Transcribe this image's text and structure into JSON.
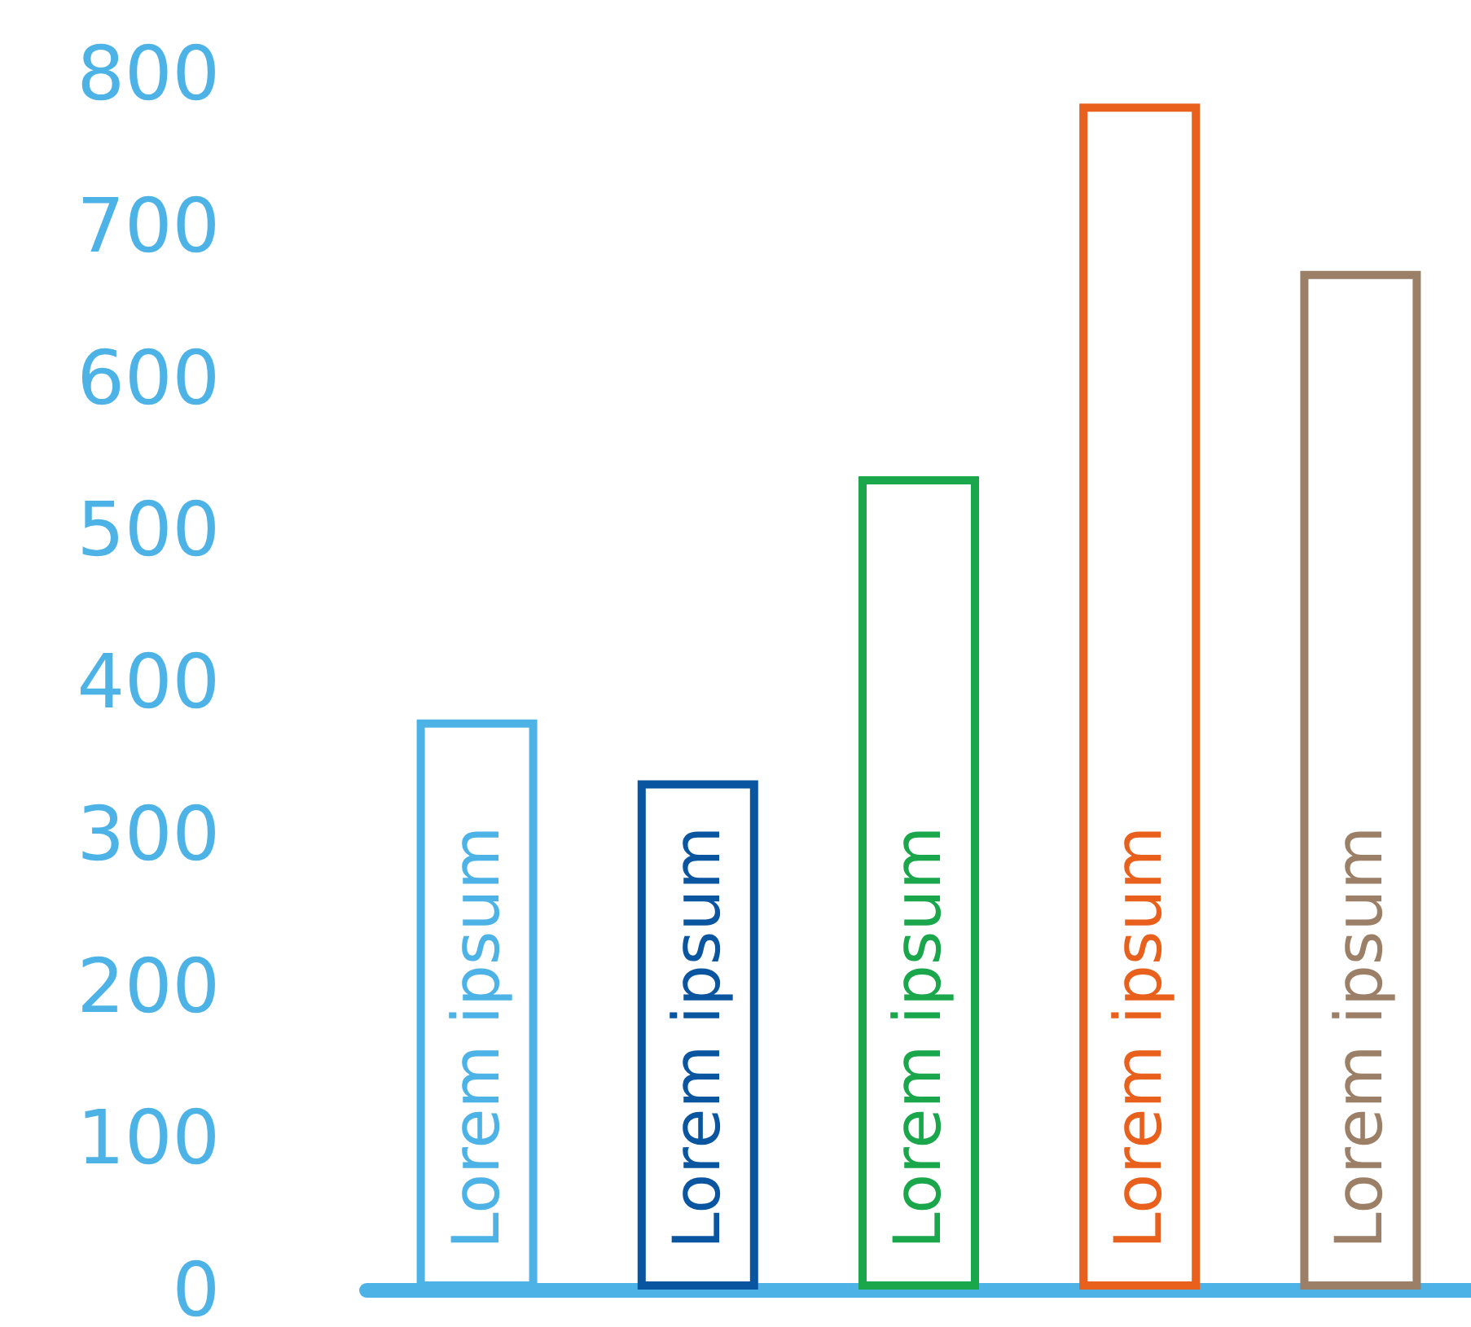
{
  "chart_data": {
    "type": "bar",
    "categories": [
      "Lorem ipsum",
      "Lorem ipsum",
      "Lorem ipsum",
      "Lorem ipsum",
      "Lorem ipsum"
    ],
    "values": [
      375,
      335,
      535,
      780,
      670
    ],
    "colors": [
      "#4db3e6",
      "#0a55a0",
      "#1aa64a",
      "#e8601c",
      "#9b7f66"
    ],
    "ylim": [
      0,
      800
    ],
    "yticks": [
      0,
      100,
      200,
      300,
      400,
      500,
      600,
      700,
      800
    ],
    "grid": false,
    "tick_labels": "y"
  }
}
